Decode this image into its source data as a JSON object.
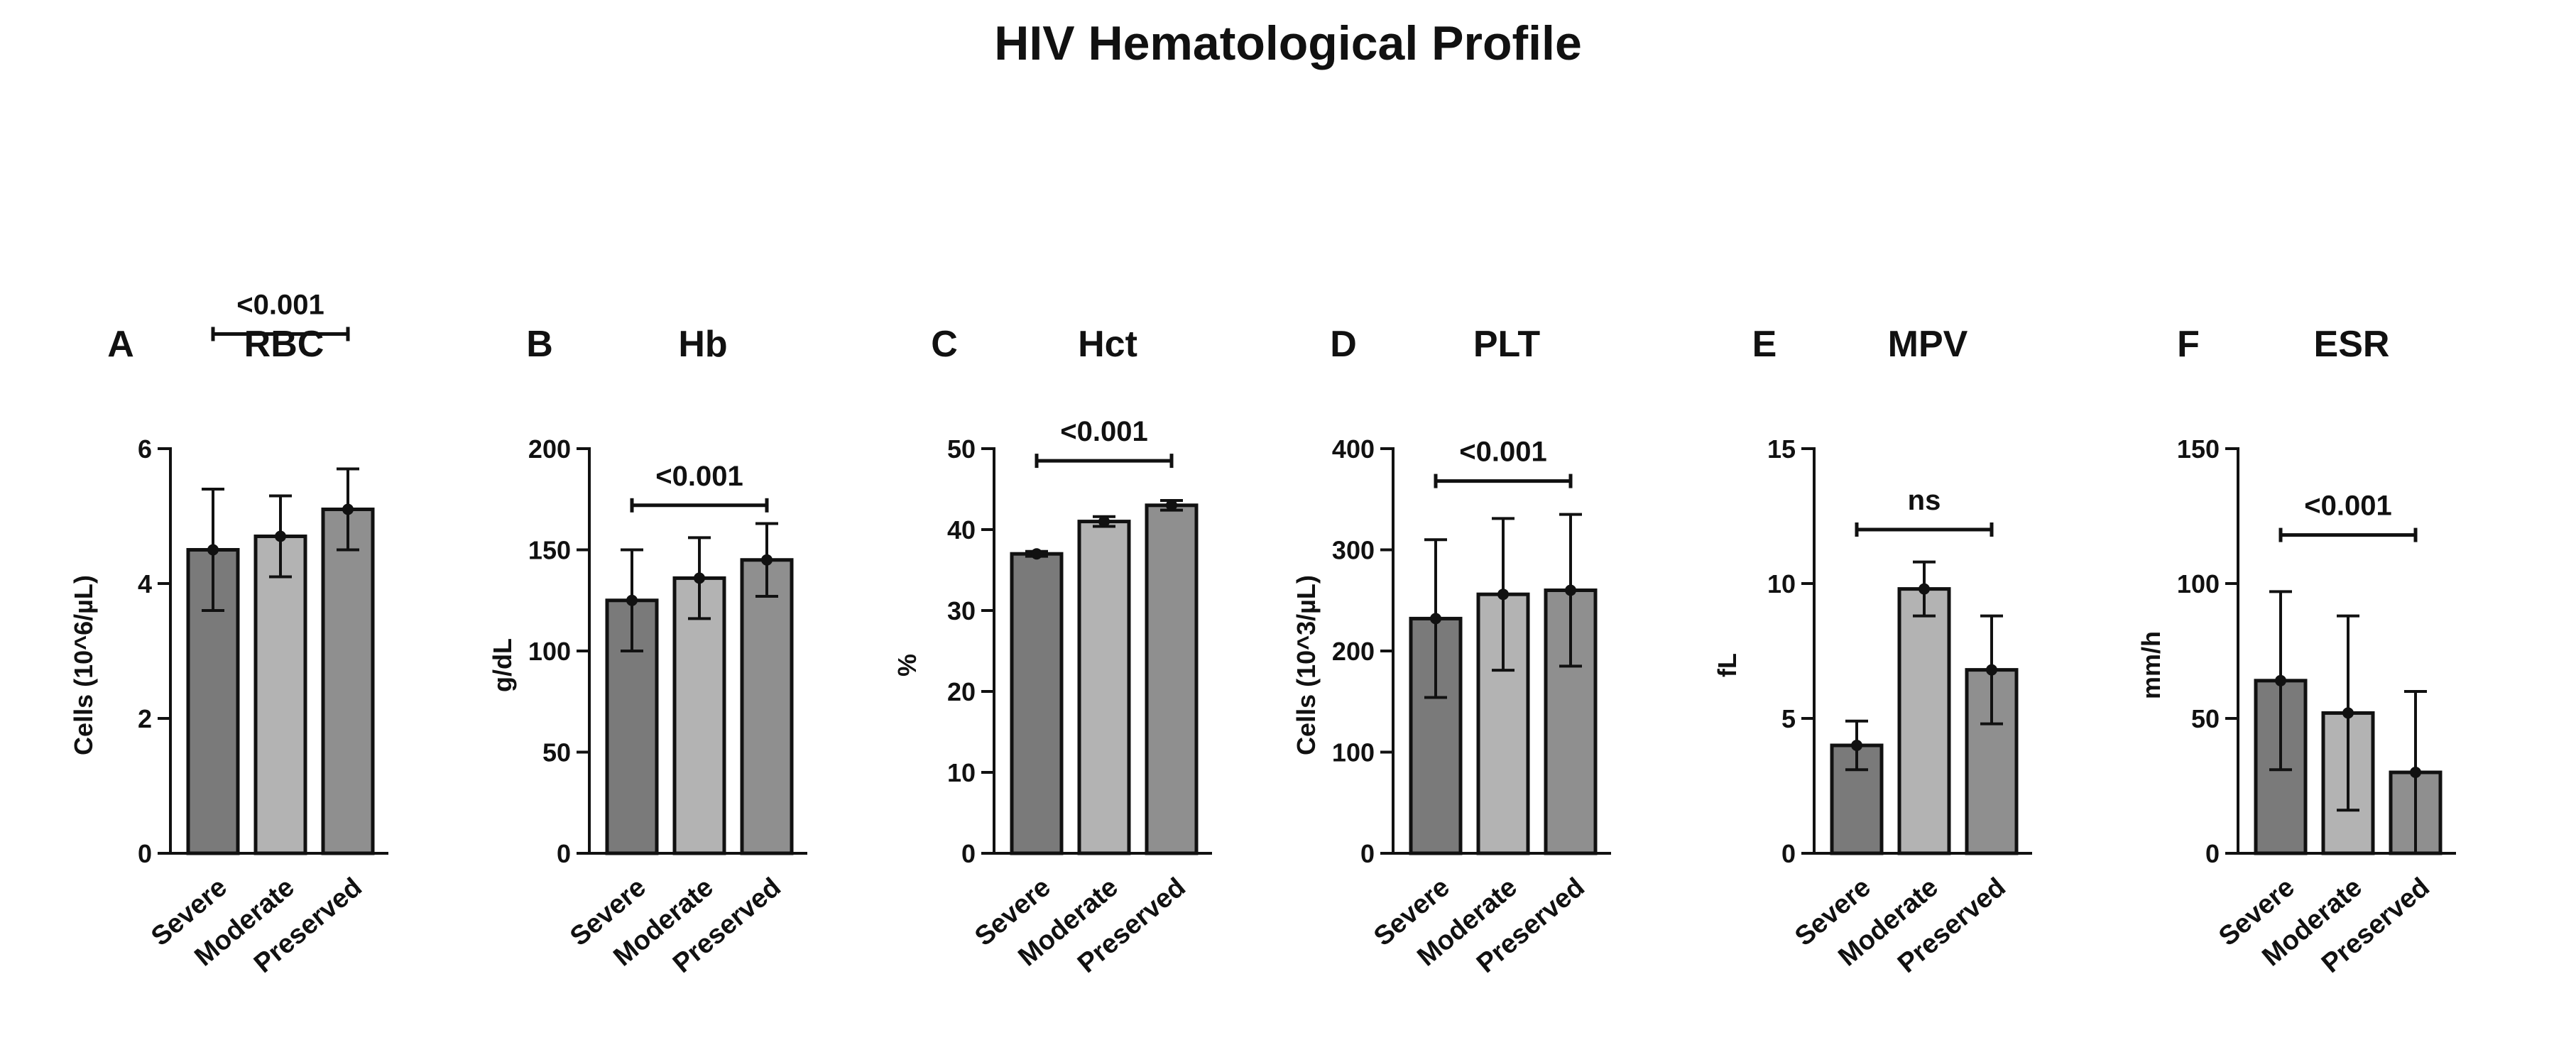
{
  "title": "HIV Hematological Profile",
  "colors": {
    "Severe": "#7a7a7a",
    "Moderate": "#b3b3b3",
    "Preserved": "#8f8f8f",
    "stroke": "#111111"
  },
  "chart_data": [
    {
      "letter": "A",
      "title": "RBC",
      "type": "bar",
      "ylabel": "Cells (10^6/µL)",
      "categories": [
        "Severe",
        "Moderate",
        "Preserved"
      ],
      "values": [
        4.5,
        4.7,
        5.1
      ],
      "errors": [
        0.9,
        0.6,
        0.6
      ],
      "ylim": [
        0,
        6
      ],
      "yticks": [
        0,
        2,
        4,
        6
      ],
      "ytick_labels": [
        "0",
        "2",
        "4",
        "6"
      ],
      "significance": "<0.001",
      "sig_level": 7.7
    },
    {
      "letter": "B",
      "title": "Hb",
      "type": "bar",
      "ylabel": "g/dL",
      "categories": [
        "Severe",
        "Moderate",
        "Preserved"
      ],
      "values": [
        125,
        136,
        145
      ],
      "errors": [
        25,
        20,
        18
      ],
      "ylim": [
        0,
        200
      ],
      "yticks": [
        0,
        50,
        100,
        150,
        200
      ],
      "ytick_labels": [
        "0",
        "50",
        "100",
        "150",
        "200"
      ],
      "significance": "<0.001",
      "sig_level": 172
    },
    {
      "letter": "C",
      "title": "Hct",
      "type": "bar",
      "ylabel": "%",
      "categories": [
        "Severe",
        "Moderate",
        "Preserved"
      ],
      "values": [
        37,
        41,
        43
      ],
      "errors": [
        0.3,
        0.6,
        0.6
      ],
      "ylim": [
        0,
        50
      ],
      "yticks": [
        0,
        10,
        20,
        30,
        40,
        50
      ],
      "ytick_labels": [
        "0",
        "10",
        "20",
        "30",
        "40",
        "50"
      ],
      "significance": "<0.001",
      "sig_level": 48.5
    },
    {
      "letter": "D",
      "title": "PLT",
      "type": "bar",
      "ylabel": "Cells (10^3/µL)",
      "categories": [
        "Severe",
        "Moderate",
        "Preserved"
      ],
      "values": [
        232,
        256,
        260
      ],
      "errors": [
        78,
        75,
        75
      ],
      "ylim": [
        0,
        400
      ],
      "yticks": [
        0,
        100,
        200,
        300,
        400
      ],
      "ytick_labels": [
        "0",
        "100",
        "200",
        "300",
        "400"
      ],
      "significance": "<0.001",
      "sig_level": 368
    },
    {
      "letter": "E",
      "title": "MPV",
      "type": "bar",
      "ylabel": "fL",
      "categories": [
        "Severe",
        "Moderate",
        "Preserved"
      ],
      "values": [
        4.0,
        9.8,
        6.8
      ],
      "errors": [
        0.9,
        1.0,
        2.0
      ],
      "ylim": [
        0,
        15
      ],
      "yticks": [
        0,
        5,
        10,
        15
      ],
      "ytick_labels": [
        "0",
        "5",
        "10",
        "15"
      ],
      "significance": "ns",
      "sig_level": 12
    },
    {
      "letter": "F",
      "title": "ESR",
      "type": "bar",
      "ylabel": "mm/h",
      "categories": [
        "Severe",
        "Moderate",
        "Preserved"
      ],
      "values": [
        64,
        52,
        30
      ],
      "errors": [
        33,
        36,
        30
      ],
      "ylim": [
        0,
        150
      ],
      "yticks": [
        0,
        50,
        100,
        150
      ],
      "ytick_labels": [
        "0",
        "50",
        "100",
        "150"
      ],
      "significance": "<0.001",
      "sig_level": 118
    }
  ]
}
